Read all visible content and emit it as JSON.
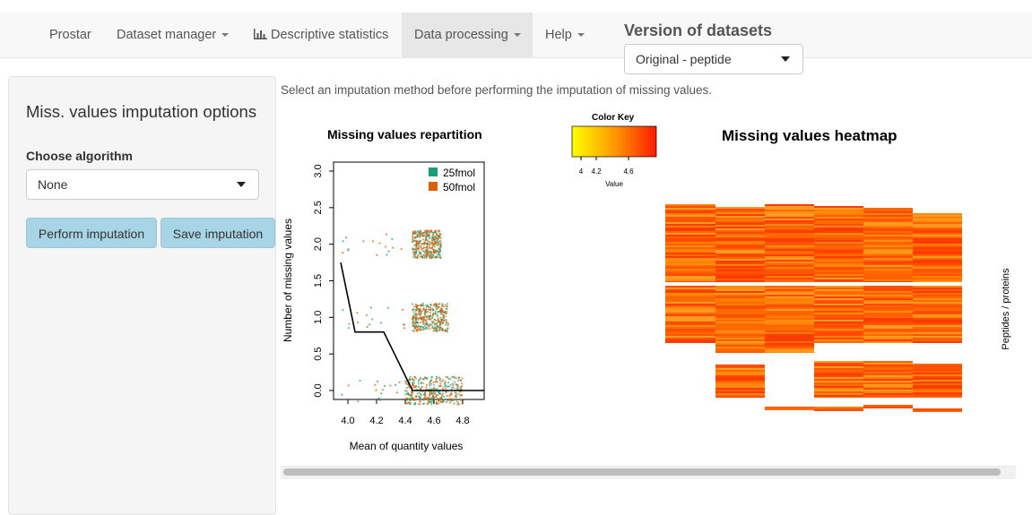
{
  "navbar": {
    "items": [
      {
        "label": "Prostar",
        "icon": null,
        "caret": false,
        "active": false
      },
      {
        "label": "Dataset manager",
        "icon": null,
        "caret": true,
        "active": false
      },
      {
        "label": "Descriptive statistics",
        "icon": "bar-chart-icon",
        "caret": false,
        "active": false
      },
      {
        "label": "Data processing",
        "icon": null,
        "caret": true,
        "active": true
      },
      {
        "label": "Help",
        "icon": null,
        "caret": true,
        "active": false
      }
    ],
    "version_title": "Version of datasets",
    "version_select": "Original - peptide"
  },
  "sidebar": {
    "title": "Miss. values imputation options",
    "choose_label": "Choose algorithm",
    "algorithm_value": "None",
    "perform_button": "Perform imputation",
    "save_button": "Save imputation"
  },
  "main": {
    "instruction": "Select an imputation method before performing the imputation of missing values."
  },
  "colors": {
    "series_25fmol": "#1b9e77",
    "series_50fmol": "#d95f02",
    "heat_low": "#ffff00",
    "heat_high": "#ff0000"
  },
  "chart_data": [
    {
      "type": "scatter",
      "title": "Missing values repartition",
      "xlabel": "Mean of quantity values",
      "ylabel": "Number of missing values",
      "xlim": [
        3.9,
        4.95
      ],
      "ylim": [
        0,
        3
      ],
      "x_ticks": [
        "4.0",
        "4.2",
        "4.4",
        "4.6",
        "4.8"
      ],
      "y_ticks": [
        "0.0",
        "0.5",
        "1.0",
        "1.5",
        "2.0",
        "2.5",
        "3.0"
      ],
      "legend": {
        "position": "top-right",
        "entries": [
          "25fmol",
          "50fmol"
        ]
      },
      "series": [
        {
          "name": "25fmol",
          "clusters": [
            {
              "y": 0,
              "x_range": [
                4.4,
                4.8
              ]
            },
            {
              "y": 1,
              "x_range": [
                4.45,
                4.7
              ]
            },
            {
              "y": 2,
              "x_range": [
                4.45,
                4.65
              ]
            }
          ]
        },
        {
          "name": "50fmol",
          "clusters": [
            {
              "y": 0,
              "x_range": [
                4.4,
                4.8
              ]
            },
            {
              "y": 1,
              "x_range": [
                4.45,
                4.7
              ]
            },
            {
              "y": 2,
              "x_range": [
                4.45,
                4.65
              ]
            }
          ]
        }
      ],
      "trend_line": {
        "x": [
          3.95,
          4.05,
          4.25,
          4.45,
          4.95
        ],
        "y": [
          1.75,
          0.8,
          0.8,
          0.0,
          0.0
        ]
      }
    },
    {
      "type": "heatmap",
      "title": "Missing values heatmap",
      "ylabel": "Peptides / proteins",
      "color_key": {
        "title": "Color Key",
        "label": "Value",
        "ticks": [
          "4",
          "4.2",
          "4.6"
        ]
      }
    }
  ]
}
